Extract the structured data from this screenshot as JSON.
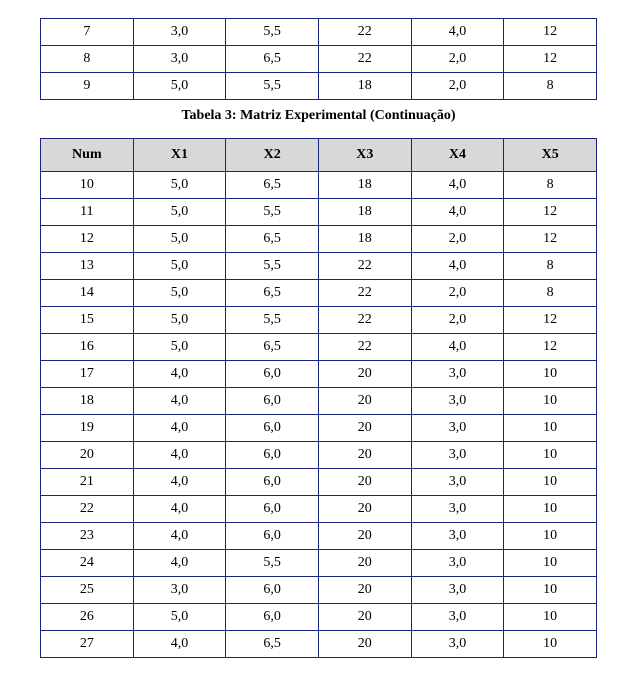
{
  "topTable": {
    "rows": [
      [
        "7",
        "3,0",
        "5,5",
        "22",
        "4,0",
        "12"
      ],
      [
        "8",
        "3,0",
        "6,5",
        "22",
        "2,0",
        "12"
      ],
      [
        "9",
        "5,0",
        "5,5",
        "18",
        "2,0",
        "8"
      ]
    ]
  },
  "caption": "Tabela 3: Matriz Experimental (Continuação)",
  "mainTable": {
    "headers": [
      "Num",
      "X1",
      "X2",
      "X3",
      "X4",
      "X5"
    ],
    "rows": [
      [
        "10",
        "5,0",
        "6,5",
        "18",
        "4,0",
        "8"
      ],
      [
        "11",
        "5,0",
        "5,5",
        "18",
        "4,0",
        "12"
      ],
      [
        "12",
        "5,0",
        "6,5",
        "18",
        "2,0",
        "12"
      ],
      [
        "13",
        "5,0",
        "5,5",
        "22",
        "4,0",
        "8"
      ],
      [
        "14",
        "5,0",
        "6,5",
        "22",
        "2,0",
        "8"
      ],
      [
        "15",
        "5,0",
        "5,5",
        "22",
        "2,0",
        "12"
      ],
      [
        "16",
        "5,0",
        "6,5",
        "22",
        "4,0",
        "12"
      ],
      [
        "17",
        "4,0",
        "6,0",
        "20",
        "3,0",
        "10"
      ],
      [
        "18",
        "4,0",
        "6,0",
        "20",
        "3,0",
        "10"
      ],
      [
        "19",
        "4,0",
        "6,0",
        "20",
        "3,0",
        "10"
      ],
      [
        "20",
        "4,0",
        "6,0",
        "20",
        "3,0",
        "10"
      ],
      [
        "21",
        "4,0",
        "6,0",
        "20",
        "3,0",
        "10"
      ],
      [
        "22",
        "4,0",
        "6,0",
        "20",
        "3,0",
        "10"
      ],
      [
        "23",
        "4,0",
        "6,0",
        "20",
        "3,0",
        "10"
      ],
      [
        "24",
        "4,0",
        "5,5",
        "20",
        "3,0",
        "10"
      ],
      [
        "25",
        "3,0",
        "6,0",
        "20",
        "3,0",
        "10"
      ],
      [
        "26",
        "5,0",
        "6,0",
        "20",
        "3,0",
        "10"
      ],
      [
        "27",
        "4,0",
        "6,5",
        "20",
        "3,0",
        "10"
      ]
    ]
  },
  "colors": {
    "border": "#1a237e",
    "headerBg": "#d8d8d8",
    "background": "#ffffff"
  }
}
